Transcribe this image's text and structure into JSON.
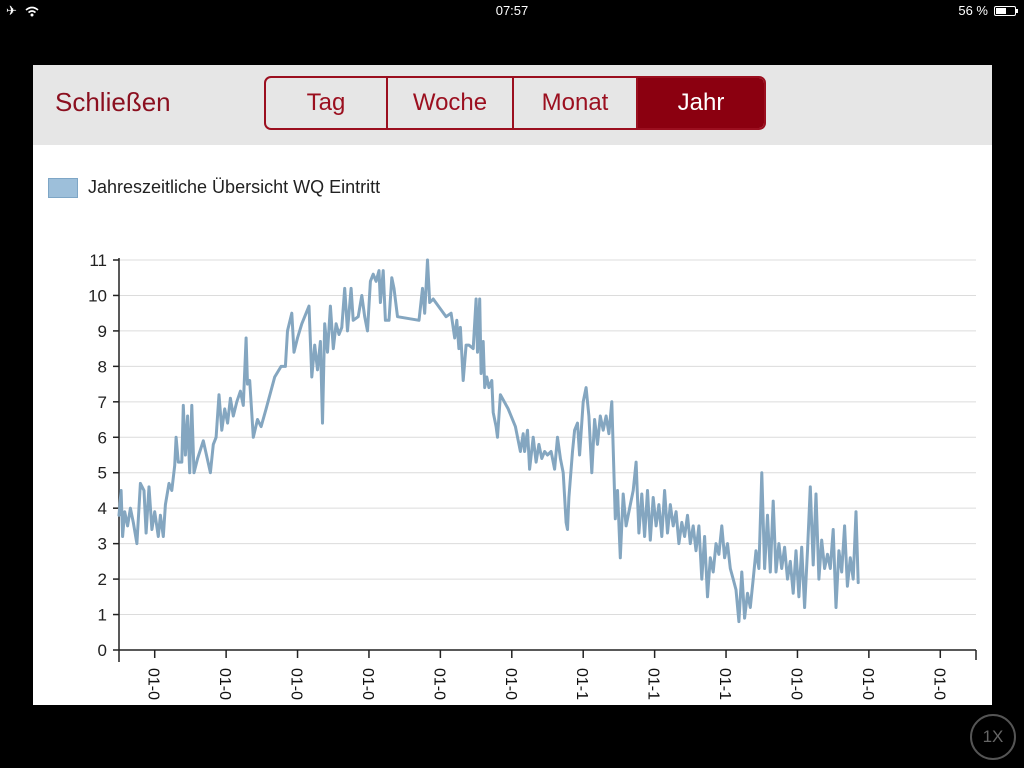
{
  "status_bar": {
    "time": "07:57",
    "battery": "56 %",
    "battery_level": 0.56
  },
  "header": {
    "close_label": "Schließen",
    "tabs": [
      {
        "label": "Tag",
        "active": false
      },
      {
        "label": "Woche",
        "active": false
      },
      {
        "label": "Monat",
        "active": false
      },
      {
        "label": "Jahr",
        "active": true
      }
    ]
  },
  "zoom_label": "1X",
  "colors": {
    "accent": "#8b0010",
    "series": "#84a6c0",
    "legend_swatch": "#9dbfda",
    "grid": "#dcdcdc"
  },
  "chart_data": {
    "type": "line",
    "legend": "Jahreszeitliche Übersicht WQ Eintritt",
    "ylim": [
      0,
      11
    ],
    "yticks": [
      0,
      1,
      2,
      3,
      4,
      5,
      6,
      7,
      8,
      9,
      10,
      11
    ],
    "xlim": [
      0,
      12
    ],
    "xticks": [
      {
        "x": 0.5,
        "label": "01-0"
      },
      {
        "x": 1.5,
        "label": "01-0"
      },
      {
        "x": 2.5,
        "label": "01-0"
      },
      {
        "x": 3.5,
        "label": "01-0"
      },
      {
        "x": 4.5,
        "label": "01-0"
      },
      {
        "x": 5.5,
        "label": "01-0"
      },
      {
        "x": 6.5,
        "label": "01-1"
      },
      {
        "x": 7.5,
        "label": "01-1"
      },
      {
        "x": 8.5,
        "label": "01-1"
      },
      {
        "x": 9.5,
        "label": "01-0"
      },
      {
        "x": 10.5,
        "label": "01-0"
      },
      {
        "x": 11.5,
        "label": "01-0"
      }
    ],
    "grid": "horizontal",
    "series": [
      {
        "values": [
          [
            0.0,
            3.8
          ],
          [
            0.03,
            4.5
          ],
          [
            0.05,
            3.2
          ],
          [
            0.08,
            3.9
          ],
          [
            0.12,
            3.5
          ],
          [
            0.16,
            4.0
          ],
          [
            0.2,
            3.6
          ],
          [
            0.25,
            3.0
          ],
          [
            0.3,
            4.7
          ],
          [
            0.35,
            4.5
          ],
          [
            0.38,
            3.3
          ],
          [
            0.42,
            4.6
          ],
          [
            0.46,
            3.4
          ],
          [
            0.5,
            3.9
          ],
          [
            0.55,
            3.2
          ],
          [
            0.58,
            3.8
          ],
          [
            0.62,
            3.2
          ],
          [
            0.65,
            4.1
          ],
          [
            0.7,
            4.7
          ],
          [
            0.74,
            4.5
          ],
          [
            0.78,
            5.2
          ],
          [
            0.8,
            6.0
          ],
          [
            0.83,
            5.3
          ],
          [
            0.88,
            5.3
          ],
          [
            0.9,
            6.9
          ],
          [
            0.93,
            5.5
          ],
          [
            0.96,
            6.6
          ],
          [
            0.99,
            5.0
          ],
          [
            1.02,
            6.9
          ],
          [
            1.05,
            5.0
          ],
          [
            1.1,
            5.4
          ],
          [
            1.18,
            5.9
          ],
          [
            1.28,
            5.0
          ],
          [
            1.32,
            5.8
          ],
          [
            1.36,
            6.0
          ],
          [
            1.4,
            7.2
          ],
          [
            1.44,
            6.2
          ],
          [
            1.48,
            6.8
          ],
          [
            1.52,
            6.4
          ],
          [
            1.56,
            7.1
          ],
          [
            1.6,
            6.6
          ],
          [
            1.65,
            7.0
          ],
          [
            1.7,
            7.3
          ],
          [
            1.74,
            6.9
          ],
          [
            1.78,
            8.8
          ],
          [
            1.8,
            7.5
          ],
          [
            1.83,
            7.6
          ],
          [
            1.88,
            6.0
          ],
          [
            1.94,
            6.5
          ],
          [
            1.99,
            6.3
          ],
          [
            2.06,
            6.8
          ],
          [
            2.18,
            7.7
          ],
          [
            2.27,
            8.0
          ],
          [
            2.33,
            8.0
          ],
          [
            2.36,
            9.0
          ],
          [
            2.42,
            9.5
          ],
          [
            2.45,
            8.4
          ],
          [
            2.5,
            8.8
          ],
          [
            2.56,
            9.2
          ],
          [
            2.62,
            9.5
          ],
          [
            2.66,
            9.7
          ],
          [
            2.7,
            7.7
          ],
          [
            2.74,
            8.6
          ],
          [
            2.78,
            7.9
          ],
          [
            2.82,
            8.7
          ],
          [
            2.85,
            6.4
          ],
          [
            2.88,
            9.2
          ],
          [
            2.92,
            8.4
          ],
          [
            2.96,
            9.7
          ],
          [
            3.0,
            8.5
          ],
          [
            3.04,
            9.2
          ],
          [
            3.08,
            8.9
          ],
          [
            3.12,
            9.1
          ],
          [
            3.16,
            10.2
          ],
          [
            3.2,
            9.0
          ],
          [
            3.25,
            10.2
          ],
          [
            3.28,
            9.3
          ],
          [
            3.35,
            9.4
          ],
          [
            3.4,
            10.0
          ],
          [
            3.44,
            9.4
          ],
          [
            3.48,
            9.0
          ],
          [
            3.52,
            10.4
          ],
          [
            3.56,
            10.6
          ],
          [
            3.6,
            10.4
          ],
          [
            3.64,
            10.7
          ],
          [
            3.66,
            9.8
          ],
          [
            3.7,
            10.7
          ],
          [
            3.73,
            9.3
          ],
          [
            3.78,
            9.3
          ],
          [
            3.82,
            10.5
          ],
          [
            3.85,
            10.2
          ],
          [
            3.9,
            9.4
          ],
          [
            4.2,
            9.3
          ],
          [
            4.25,
            10.2
          ],
          [
            4.28,
            9.5
          ],
          [
            4.32,
            11.0
          ],
          [
            4.35,
            9.8
          ],
          [
            4.4,
            9.9
          ],
          [
            4.58,
            9.4
          ],
          [
            4.65,
            9.5
          ],
          [
            4.7,
            8.8
          ],
          [
            4.73,
            9.3
          ],
          [
            4.76,
            8.5
          ],
          [
            4.78,
            9.1
          ],
          [
            4.82,
            7.6
          ],
          [
            4.86,
            8.6
          ],
          [
            4.9,
            8.6
          ],
          [
            4.96,
            8.5
          ],
          [
            5.0,
            9.9
          ],
          [
            5.02,
            8.4
          ],
          [
            5.05,
            9.9
          ],
          [
            5.07,
            7.8
          ],
          [
            5.1,
            8.7
          ],
          [
            5.12,
            7.4
          ],
          [
            5.15,
            7.7
          ],
          [
            5.18,
            7.4
          ],
          [
            5.22,
            7.6
          ],
          [
            5.24,
            6.7
          ],
          [
            5.28,
            6.3
          ],
          [
            5.3,
            6.0
          ],
          [
            5.34,
            7.2
          ],
          [
            5.45,
            6.8
          ],
          [
            5.55,
            6.3
          ],
          [
            5.62,
            5.6
          ],
          [
            5.66,
            6.1
          ],
          [
            5.68,
            5.6
          ],
          [
            5.72,
            6.2
          ],
          [
            5.75,
            5.1
          ],
          [
            5.8,
            6.0
          ],
          [
            5.84,
            5.3
          ],
          [
            5.88,
            5.8
          ],
          [
            5.92,
            5.4
          ],
          [
            5.96,
            5.6
          ],
          [
            6.0,
            5.5
          ],
          [
            6.05,
            5.6
          ],
          [
            6.1,
            5.1
          ],
          [
            6.14,
            6.0
          ],
          [
            6.18,
            5.4
          ],
          [
            6.22,
            5.0
          ],
          [
            6.26,
            3.6
          ],
          [
            6.28,
            3.4
          ],
          [
            6.3,
            4.3
          ],
          [
            6.35,
            5.6
          ],
          [
            6.38,
            6.2
          ],
          [
            6.42,
            6.4
          ],
          [
            6.45,
            5.5
          ],
          [
            6.5,
            7.0
          ],
          [
            6.54,
            7.4
          ],
          [
            6.58,
            6.6
          ],
          [
            6.62,
            5.0
          ],
          [
            6.66,
            6.5
          ],
          [
            6.7,
            5.8
          ],
          [
            6.74,
            6.6
          ],
          [
            6.78,
            6.2
          ],
          [
            6.82,
            6.6
          ],
          [
            6.86,
            6.1
          ],
          [
            6.9,
            7.0
          ],
          [
            6.95,
            3.7
          ],
          [
            6.98,
            4.5
          ],
          [
            7.02,
            2.6
          ],
          [
            7.06,
            4.4
          ],
          [
            7.1,
            3.5
          ],
          [
            7.15,
            4.0
          ],
          [
            7.2,
            4.5
          ],
          [
            7.24,
            5.3
          ],
          [
            7.28,
            3.3
          ],
          [
            7.32,
            4.4
          ],
          [
            7.36,
            3.2
          ],
          [
            7.4,
            4.5
          ],
          [
            7.44,
            3.1
          ],
          [
            7.48,
            4.3
          ],
          [
            7.52,
            3.5
          ],
          [
            7.56,
            4.1
          ],
          [
            7.6,
            3.2
          ],
          [
            7.64,
            4.5
          ],
          [
            7.68,
            3.3
          ],
          [
            7.72,
            4.1
          ],
          [
            7.76,
            3.5
          ],
          [
            7.8,
            3.9
          ],
          [
            7.84,
            3.0
          ],
          [
            7.88,
            3.6
          ],
          [
            7.92,
            3.2
          ],
          [
            7.96,
            3.8
          ],
          [
            8.0,
            3.0
          ],
          [
            8.04,
            3.5
          ],
          [
            8.08,
            2.8
          ],
          [
            8.12,
            3.5
          ],
          [
            8.16,
            2.0
          ],
          [
            8.2,
            3.2
          ],
          [
            8.24,
            1.5
          ],
          [
            8.28,
            2.6
          ],
          [
            8.32,
            2.2
          ],
          [
            8.36,
            3.0
          ],
          [
            8.4,
            2.7
          ],
          [
            8.44,
            3.5
          ],
          [
            8.48,
            2.6
          ],
          [
            8.52,
            3.0
          ],
          [
            8.56,
            2.3
          ],
          [
            8.6,
            2.0
          ],
          [
            8.64,
            1.7
          ],
          [
            8.68,
            0.8
          ],
          [
            8.72,
            2.2
          ],
          [
            8.76,
            0.9
          ],
          [
            8.8,
            1.6
          ],
          [
            8.84,
            1.2
          ],
          [
            8.88,
            2.0
          ],
          [
            8.92,
            2.8
          ],
          [
            8.96,
            2.3
          ],
          [
            9.0,
            5.0
          ],
          [
            9.04,
            2.3
          ],
          [
            9.08,
            3.8
          ],
          [
            9.12,
            2.2
          ],
          [
            9.16,
            4.2
          ],
          [
            9.2,
            2.2
          ],
          [
            9.24,
            3.0
          ],
          [
            9.28,
            2.3
          ],
          [
            9.32,
            2.9
          ],
          [
            9.36,
            2.0
          ],
          [
            9.4,
            2.5
          ],
          [
            9.44,
            1.6
          ],
          [
            9.48,
            2.8
          ],
          [
            9.52,
            1.5
          ],
          [
            9.56,
            2.9
          ],
          [
            9.6,
            1.2
          ],
          [
            9.64,
            2.8
          ],
          [
            9.68,
            4.6
          ],
          [
            9.72,
            2.4
          ],
          [
            9.76,
            4.4
          ],
          [
            9.8,
            2.0
          ],
          [
            9.84,
            3.1
          ],
          [
            9.88,
            2.3
          ],
          [
            9.92,
            2.7
          ],
          [
            9.96,
            2.3
          ],
          [
            10.0,
            3.4
          ],
          [
            10.04,
            1.2
          ],
          [
            10.08,
            2.8
          ],
          [
            10.12,
            2.2
          ],
          [
            10.16,
            3.5
          ],
          [
            10.2,
            1.8
          ],
          [
            10.24,
            2.6
          ],
          [
            10.28,
            2.0
          ],
          [
            10.32,
            3.9
          ],
          [
            10.35,
            1.9
          ]
        ]
      }
    ]
  }
}
